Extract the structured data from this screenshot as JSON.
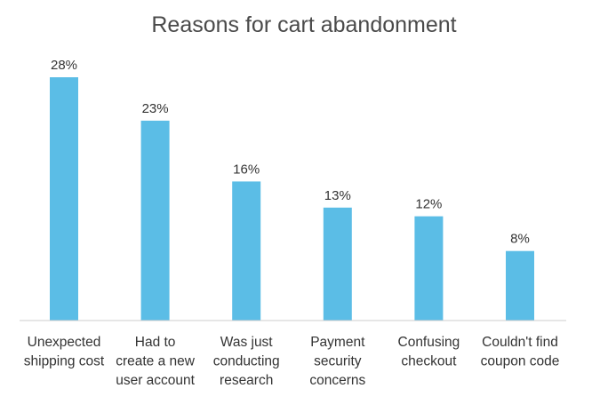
{
  "chart_data": {
    "type": "bar",
    "title": "Reasons for cart abandonment",
    "xlabel": "",
    "ylabel": "",
    "categories": [
      [
        "Unexpected",
        "shipping cost"
      ],
      [
        "Had to",
        "create a new",
        "user account"
      ],
      [
        "Was just",
        "conducting",
        "research"
      ],
      [
        "Payment",
        "security",
        "concerns"
      ],
      [
        "Confusing",
        "checkout"
      ],
      [
        "Couldn't find",
        "coupon code"
      ]
    ],
    "values": [
      28,
      23,
      16,
      13,
      12,
      8
    ],
    "data_labels": [
      "28%",
      "23%",
      "16%",
      "13%",
      "12%",
      "8%"
    ],
    "ylim": [
      0,
      30
    ],
    "grid": false,
    "legend": "none",
    "bar_color": "#5bbde6",
    "baseline_color": "#cccccc"
  }
}
